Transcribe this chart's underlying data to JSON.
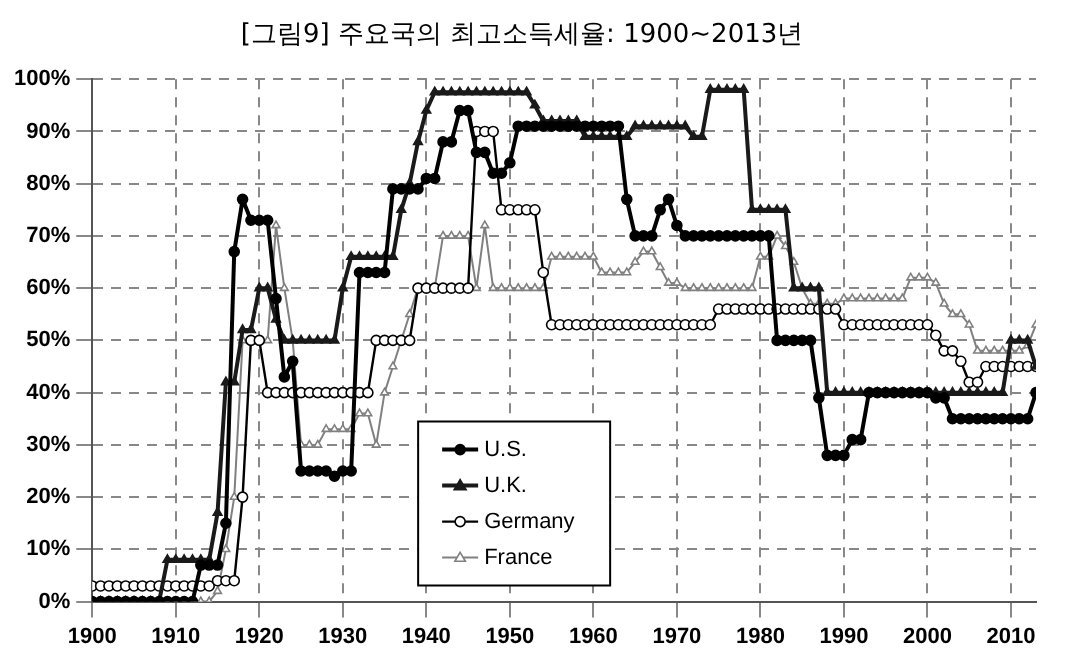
{
  "chart_data": {
    "type": "line",
    "title": "[그림9] 주요국의 최고소득세율: 1900~2013년",
    "x": [
      1900,
      1901,
      1902,
      1903,
      1904,
      1905,
      1906,
      1907,
      1908,
      1909,
      1910,
      1911,
      1912,
      1913,
      1914,
      1915,
      1916,
      1917,
      1918,
      1919,
      1920,
      1921,
      1922,
      1923,
      1924,
      1925,
      1926,
      1927,
      1928,
      1929,
      1930,
      1931,
      1932,
      1933,
      1934,
      1935,
      1936,
      1937,
      1938,
      1939,
      1940,
      1941,
      1942,
      1943,
      1944,
      1945,
      1946,
      1947,
      1948,
      1949,
      1950,
      1951,
      1952,
      1953,
      1954,
      1955,
      1956,
      1957,
      1958,
      1959,
      1960,
      1961,
      1962,
      1963,
      1964,
      1965,
      1966,
      1967,
      1968,
      1969,
      1970,
      1971,
      1972,
      1973,
      1974,
      1975,
      1976,
      1977,
      1978,
      1979,
      1980,
      1981,
      1982,
      1983,
      1984,
      1985,
      1986,
      1987,
      1988,
      1989,
      1990,
      1991,
      1992,
      1993,
      1994,
      1995,
      1996,
      1997,
      1998,
      1999,
      2000,
      2001,
      2002,
      2003,
      2004,
      2005,
      2006,
      2007,
      2008,
      2009,
      2010,
      2011,
      2012,
      2013
    ],
    "series": [
      {
        "name": "U.S.",
        "color": "#000000",
        "marker": "circle",
        "values": [
          0,
          0,
          0,
          0,
          0,
          0,
          0,
          0,
          0,
          0,
          0,
          0,
          0,
          7,
          7,
          7,
          15,
          67,
          77,
          73,
          73,
          73,
          58,
          43,
          46,
          25,
          25,
          25,
          25,
          24,
          25,
          25,
          63,
          63,
          63,
          63,
          79,
          79,
          79,
          79,
          81,
          81,
          88,
          88,
          94,
          94,
          86,
          86,
          82,
          82,
          84,
          91,
          91,
          91,
          91,
          91,
          91,
          91,
          91,
          91,
          91,
          91,
          91,
          91,
          77,
          70,
          70,
          70,
          75,
          77,
          72,
          70,
          70,
          70,
          70,
          70,
          70,
          70,
          70,
          70,
          70,
          70,
          50,
          50,
          50,
          50,
          50,
          39,
          28,
          28,
          28,
          31,
          31,
          40,
          40,
          40,
          40,
          40,
          40,
          40,
          40,
          39,
          39,
          35,
          35,
          35,
          35,
          35,
          35,
          35,
          35,
          35,
          35,
          40
        ]
      },
      {
        "name": "U.K.",
        "color": "#1a1a1a",
        "marker": "triangle",
        "values": [
          0,
          0,
          0,
          0,
          0,
          0,
          0,
          0,
          0,
          8,
          8,
          8,
          8,
          8,
          8,
          17,
          42,
          42,
          52,
          52,
          60,
          60,
          54,
          50,
          50,
          50,
          50,
          50,
          50,
          50,
          60,
          66,
          66,
          66,
          66,
          66,
          66,
          75,
          80,
          88,
          94,
          97.5,
          97.5,
          97.5,
          97.5,
          97.5,
          97.5,
          97.5,
          97.5,
          97.5,
          97.5,
          97.5,
          97.5,
          95,
          92,
          92,
          92,
          92,
          92,
          89,
          89,
          89,
          89,
          89,
          89,
          91,
          91,
          91,
          91,
          91,
          91,
          91,
          89,
          89,
          98,
          98,
          98,
          98,
          98,
          75,
          75,
          75,
          75,
          75,
          60,
          60,
          60,
          60,
          40,
          40,
          40,
          40,
          40,
          40,
          40,
          40,
          40,
          40,
          40,
          40,
          40,
          40,
          40,
          40,
          40,
          40,
          40,
          40,
          40,
          40,
          50,
          50,
          50,
          45
        ]
      },
      {
        "name": "Germany",
        "color": "#000000",
        "marker": "circle",
        "values": [
          3,
          3,
          3,
          3,
          3,
          3,
          3,
          3,
          3,
          3,
          3,
          3,
          3,
          3,
          3,
          4,
          4,
          4,
          20,
          50,
          50,
          40,
          40,
          40,
          40,
          40,
          40,
          40,
          40,
          40,
          40,
          40,
          40,
          40,
          50,
          50,
          50,
          50,
          50,
          60,
          60,
          60,
          60,
          60,
          60,
          60,
          90,
          90,
          90,
          75,
          75,
          75,
          75,
          75,
          63,
          53,
          53,
          53,
          53,
          53,
          53,
          53,
          53,
          53,
          53,
          53,
          53,
          53,
          53,
          53,
          53,
          53,
          53,
          53,
          53,
          56,
          56,
          56,
          56,
          56,
          56,
          56,
          56,
          56,
          56,
          56,
          56,
          56,
          56,
          56,
          53,
          53,
          53,
          53,
          53,
          53,
          53,
          53,
          53,
          53,
          53,
          51,
          48,
          48,
          46,
          42,
          42,
          45,
          45,
          45,
          45,
          45,
          45,
          45
        ]
      },
      {
        "name": "France",
        "color": "#808080",
        "marker": "triangle",
        "values": [
          0,
          0,
          0,
          0,
          0,
          0,
          0,
          0,
          0,
          0,
          0,
          0,
          0,
          0,
          0,
          2,
          10,
          20,
          50,
          50,
          50,
          50,
          72,
          60,
          50,
          30,
          30,
          30,
          33,
          33,
          33,
          33,
          36,
          36,
          30,
          40,
          45,
          50,
          55,
          60,
          60,
          60,
          70,
          70,
          70,
          70,
          60,
          72,
          60,
          60,
          60,
          60,
          60,
          60,
          60,
          66,
          66,
          66,
          66,
          66,
          66,
          63,
          63,
          63,
          63,
          65,
          67,
          67,
          64,
          61,
          61,
          60,
          60,
          60,
          60,
          60,
          60,
          60,
          60,
          60,
          66,
          66,
          70,
          68,
          65,
          60,
          57,
          57,
          57,
          57,
          58,
          58,
          58,
          58,
          58,
          58,
          58,
          58,
          62,
          62,
          62,
          61,
          57,
          55,
          55,
          53,
          48,
          48,
          48,
          48,
          48,
          48,
          49,
          53
        ]
      }
    ],
    "xlim": [
      1900,
      2013
    ],
    "xticks": [
      1900,
      1910,
      1920,
      1930,
      1940,
      1950,
      1960,
      1970,
      1980,
      1990,
      2000,
      2010
    ],
    "ylim": [
      0,
      100
    ],
    "yticks": [
      {
        "value": 0,
        "label": "0%"
      },
      {
        "value": 10,
        "label": "10%"
      },
      {
        "value": 20,
        "label": "20%"
      },
      {
        "value": 30,
        "label": "30%"
      },
      {
        "value": 40,
        "label": "40%"
      },
      {
        "value": 50,
        "label": "50%"
      },
      {
        "value": 60,
        "label": "60%"
      },
      {
        "value": 70,
        "label": "70%"
      },
      {
        "value": 80,
        "label": "80%"
      },
      {
        "value": 90,
        "label": "90%"
      },
      {
        "value": 100,
        "label": "100%"
      }
    ],
    "grid": true,
    "legend": "bottom",
    "line_style": "solid"
  }
}
